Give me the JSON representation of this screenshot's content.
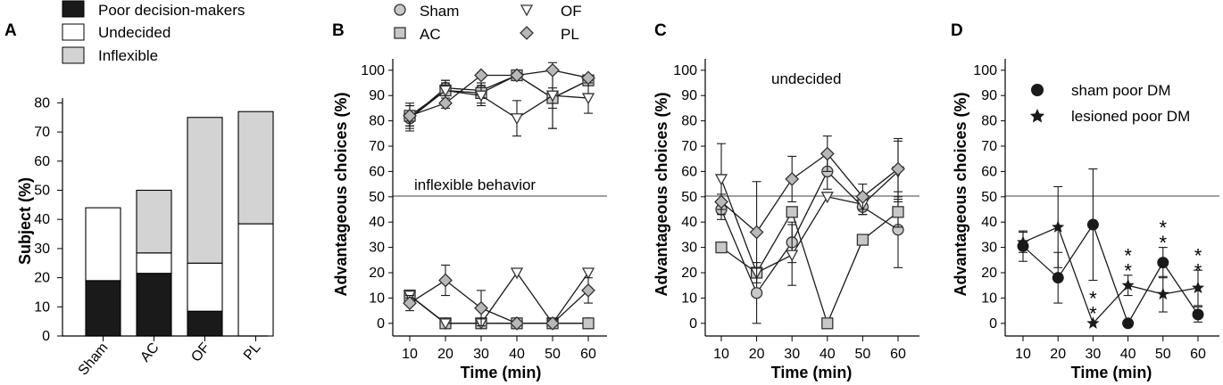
{
  "chart_data": [
    {
      "panel": "A",
      "type": "bar",
      "stacked": true,
      "categories": [
        "Sham",
        "AC",
        "OF",
        "PL"
      ],
      "series": [
        {
          "name": "Poor decision-makers",
          "color": "#1a1a1a",
          "values": [
            19,
            21.5,
            8.5,
            0
          ]
        },
        {
          "name": "Undecided",
          "color": "#ffffff",
          "values": [
            25,
            7,
            16.5,
            38.5
          ]
        },
        {
          "name": "Inflexible",
          "color": "#d3d3d3",
          "values": [
            0,
            21.5,
            50,
            38.5
          ]
        }
      ],
      "ylabel": "Subject (%)",
      "ylim": [
        0,
        80
      ],
      "yticks": [
        "0",
        "10",
        "20",
        "30",
        "40",
        "50",
        "60",
        "70",
        "80"
      ],
      "legend": [
        "Poor decision-makers",
        "Undecided",
        "Inflexible"
      ]
    },
    {
      "panel": "B",
      "type": "line",
      "x": [
        10,
        20,
        30,
        40,
        50,
        60
      ],
      "xticks": [
        "10",
        "20",
        "30",
        "40",
        "50",
        "60"
      ],
      "yticks": [
        "0",
        "10",
        "20",
        "30",
        "40",
        "50",
        "60",
        "70",
        "80",
        "90",
        "100"
      ],
      "xlabel": "Time (min)",
      "ylabel": "Advantageous choices (%)",
      "ylim": [
        -5,
        105
      ],
      "reference_line": 50,
      "annotation": "inflexible behavior",
      "legend": [
        "Sham",
        "AC",
        "OF",
        "PL"
      ],
      "series": [
        {
          "name": "Sham",
          "marker": "circle",
          "values": [
            81,
            93,
            92,
            98,
            89,
            96
          ],
          "errors": [
            3,
            3,
            3,
            1,
            4,
            2
          ]
        },
        {
          "name": "AC",
          "marker": "square",
          "values": [
            82,
            92,
            91,
            98,
            89,
            96
          ],
          "errors": [
            5,
            4,
            4,
            1,
            12,
            2
          ]
        },
        {
          "name": "OF",
          "marker": "triangle-down",
          "values": [
            81,
            92,
            90,
            81,
            90,
            89
          ],
          "errors": [
            5,
            3,
            4,
            7,
            13,
            6
          ]
        },
        {
          "name": "PL",
          "marker": "diamond",
          "values": [
            82,
            87,
            98,
            98,
            100,
            97
          ],
          "errors": [
            4,
            2,
            1,
            1,
            1,
            1
          ]
        },
        {
          "name": "Sham",
          "marker": "circle",
          "values": [
            11,
            0,
            0,
            0,
            0,
            0
          ],
          "errors": [
            1,
            0,
            0,
            0,
            0,
            0
          ]
        },
        {
          "name": "AC",
          "marker": "square",
          "values": [
            11,
            0,
            0,
            0,
            0,
            0
          ],
          "errors": [
            1,
            0,
            0,
            0,
            0,
            0
          ]
        },
        {
          "name": "OF",
          "marker": "triangle-down",
          "values": [
            11,
            0,
            0,
            20,
            0,
            20
          ],
          "errors": [
            1,
            0,
            0,
            0,
            0,
            0
          ]
        },
        {
          "name": "PL",
          "marker": "diamond",
          "values": [
            8,
            17,
            6,
            0,
            0,
            13
          ],
          "errors": [
            3,
            6,
            7,
            0,
            0,
            5
          ]
        }
      ]
    },
    {
      "panel": "C",
      "type": "line",
      "x": [
        10,
        20,
        30,
        40,
        50,
        60
      ],
      "xticks": [
        "10",
        "20",
        "30",
        "40",
        "50",
        "60"
      ],
      "yticks": [
        "0",
        "10",
        "20",
        "30",
        "40",
        "50",
        "60",
        "70",
        "80",
        "90",
        "100"
      ],
      "xlabel": "Time (min)",
      "ylabel": "Advantageous choices (%)",
      "ylim": [
        -5,
        105
      ],
      "reference_line": 50,
      "annotation": "undecided",
      "series": [
        {
          "name": "Sham",
          "marker": "circle",
          "values": [
            45,
            12,
            32,
            60,
            46,
            37
          ],
          "errors": [
            4,
            12,
            8,
            7,
            3,
            15
          ]
        },
        {
          "name": "AC",
          "marker": "square",
          "values": [
            30,
            20,
            44,
            0,
            33,
            44
          ],
          "errors": [
            0,
            0,
            0,
            0,
            0,
            6
          ]
        },
        {
          "name": "OF",
          "marker": "triangle-down",
          "values": [
            57,
            20,
            27,
            50,
            47,
            60
          ],
          "errors": [
            14,
            0,
            12,
            0,
            4,
            12
          ]
        },
        {
          "name": "PL",
          "marker": "diamond",
          "values": [
            48,
            36,
            57,
            67,
            50,
            61
          ],
          "errors": [
            3,
            20,
            9,
            7,
            5,
            12
          ]
        }
      ]
    },
    {
      "panel": "D",
      "type": "line",
      "x": [
        10,
        20,
        30,
        40,
        50,
        60
      ],
      "xticks": [
        "10",
        "20",
        "30",
        "40",
        "50",
        "60"
      ],
      "yticks": [
        "0",
        "10",
        "20",
        "30",
        "40",
        "50",
        "60",
        "70",
        "80",
        "90",
        "100"
      ],
      "xlabel": "Time (min)",
      "ylabel": "Advantageous choices (%)",
      "ylim": [
        -5,
        105
      ],
      "reference_line": 50,
      "legend": [
        "sham poor DM",
        "lesioned poor DM"
      ],
      "series": [
        {
          "name": "sham poor DM",
          "marker": "circle-filled",
          "values": [
            30.5,
            18,
            39,
            0,
            24,
            3.5
          ],
          "errors": [
            6,
            10,
            22,
            0,
            6,
            3
          ]
        },
        {
          "name": "lesioned poor DM",
          "marker": "star",
          "values": [
            32,
            38,
            0,
            15,
            11.5,
            14
          ],
          "errors": [
            4,
            16,
            0,
            4,
            7,
            7
          ]
        }
      ],
      "significance": [
        {
          "x": 30,
          "y": 5,
          "label": "*"
        },
        {
          "x": 30,
          "y": 11,
          "label": "*"
        },
        {
          "x": 40,
          "y": 22,
          "label": "*"
        },
        {
          "x": 40,
          "y": 28,
          "label": "*"
        },
        {
          "x": 50,
          "y": 33,
          "label": "*"
        },
        {
          "x": 50,
          "y": 39,
          "label": "*"
        },
        {
          "x": 60,
          "y": 22,
          "label": "*"
        },
        {
          "x": 60,
          "y": 28,
          "label": "*"
        }
      ]
    }
  ]
}
